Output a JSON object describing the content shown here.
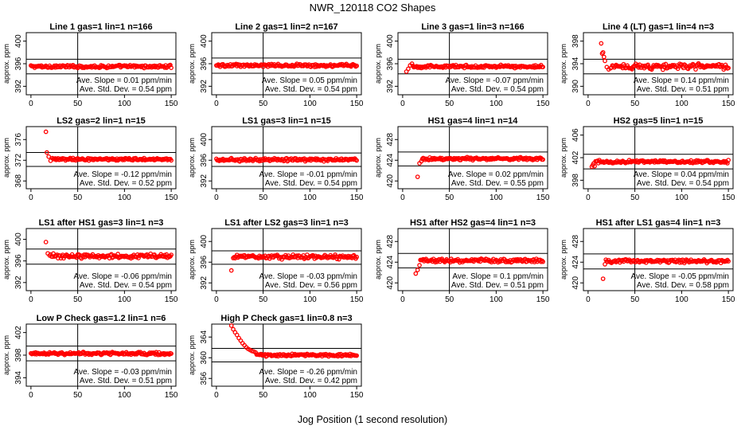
{
  "figure": {
    "title": "NWR_120118  CO2 Shapes",
    "xlabel": "Jog Position (1 second resolution)",
    "ylabel": "approx. ppm",
    "xticks": [
      0,
      50,
      100,
      150
    ],
    "marker_color": "#ff0000"
  },
  "chart_data": [
    {
      "type": "scatter",
      "title": "Line 1 gas=1 lin=1 n=166",
      "yticks": [
        392,
        396,
        400
      ],
      "ylim": [
        390.5,
        401.5
      ],
      "xlim": [
        -5,
        155
      ],
      "hlines": [
        396.8,
        394.2
      ],
      "vline": 50,
      "mean": 395.5,
      "noise": 0.15,
      "slope_text": "Ave. Slope =  0.01  ppm/min",
      "std_text": "Ave. Std. Dev. =  0.54  ppm",
      "outliers": []
    },
    {
      "type": "scatter",
      "title": "Line 2 gas=1 lin=2 n=167",
      "yticks": [
        392,
        396,
        400
      ],
      "ylim": [
        390.5,
        401.5
      ],
      "xlim": [
        -5,
        155
      ],
      "hlines": [
        397.0,
        394.3
      ],
      "vline": 50,
      "mean": 395.7,
      "noise": 0.15,
      "slope_text": "Ave. Slope =  0.05  ppm/min",
      "std_text": "Ave. Std. Dev. =  0.54  ppm",
      "outliers": []
    },
    {
      "type": "scatter",
      "title": "Line 3 gas=1 lin=3 n=166",
      "yticks": [
        392,
        396,
        400
      ],
      "ylim": [
        390.5,
        401.5
      ],
      "xlim": [
        -5,
        155
      ],
      "hlines": [
        396.8,
        394.2
      ],
      "vline": 50,
      "mean": 395.5,
      "noise": 0.15,
      "slope_text": "Ave. Slope =  -0.07  ppm/min",
      "std_text": "Ave. Std. Dev. =  0.54  ppm",
      "outliers": [
        [
          4,
          394.6
        ],
        [
          6,
          395.1
        ],
        [
          8,
          395.7
        ],
        [
          10,
          396.0
        ]
      ]
    },
    {
      "type": "scatter",
      "title": "Line 4 (LT) gas=1 lin=4 n=3",
      "yticks": [
        390,
        394,
        398
      ],
      "ylim": [
        388.5,
        399.5
      ],
      "xlim": [
        -5,
        155
      ],
      "hlines": [
        394.8,
        392.2
      ],
      "vline": 50,
      "mean": 393.5,
      "noise": 0.3,
      "slope_text": "Ave. Slope =  0.14  ppm/min",
      "std_text": "Ave. Std. Dev. =  0.51  ppm",
      "outliers": [
        [
          14,
          397.6
        ],
        [
          15,
          395.8
        ],
        [
          16,
          396.0
        ],
        [
          17,
          395.2
        ],
        [
          18,
          394.5
        ],
        [
          20,
          393.4
        ],
        [
          22,
          393.0
        ],
        [
          24,
          393.2
        ]
      ]
    },
    {
      "type": "scatter",
      "title": "LS2 gas=2 lin=1 n=15",
      "yticks": [
        368,
        372,
        376
      ],
      "ylim": [
        366.5,
        378.5
      ],
      "xlim": [
        -5,
        155
      ],
      "hlines": [
        373.5,
        370.8
      ],
      "vline": 50,
      "mean": 372.2,
      "noise": 0.15,
      "slope_text": "Ave. Slope =  -0.12  ppm/min",
      "std_text": "Ave. Std. Dev. =  0.52  ppm",
      "outliers": [
        [
          16,
          377.5
        ],
        [
          17,
          373.5
        ],
        [
          19,
          372.7
        ],
        [
          21,
          371.9
        ],
        [
          23,
          372.4
        ]
      ]
    },
    {
      "type": "scatter",
      "title": "LS1 gas=3 lin=1 n=15",
      "yticks": [
        392,
        396,
        400
      ],
      "ylim": [
        390.5,
        402.5
      ],
      "xlim": [
        -5,
        155
      ],
      "hlines": [
        397.4,
        394.8
      ],
      "vline": 50,
      "mean": 396.1,
      "noise": 0.18,
      "slope_text": "Ave. Slope =  -0.01  ppm/min",
      "std_text": "Ave. Std. Dev. =  0.54  ppm",
      "outliers": []
    },
    {
      "type": "scatter",
      "title": "HS1 gas=4 lin=1 n=14",
      "yticks": [
        420,
        424,
        428
      ],
      "ylim": [
        418.5,
        430.5
      ],
      "xlim": [
        -5,
        155
      ],
      "hlines": [
        425.6,
        422.9
      ],
      "vline": 50,
      "mean": 424.3,
      "noise": 0.15,
      "slope_text": "Ave. Slope =  0.02  ppm/min",
      "std_text": "Ave. Std. Dev. =  0.55  ppm",
      "outliers": [
        [
          16,
          420.8
        ],
        [
          18,
          423.4
        ],
        [
          20,
          423.8
        ]
      ]
    },
    {
      "type": "scatter",
      "title": "HS2 gas=5 lin=1 n=15",
      "yticks": [
        398,
        402,
        406
      ],
      "ylim": [
        396.5,
        407.5
      ],
      "xlim": [
        -5,
        155
      ],
      "hlines": [
        402.6,
        400.0
      ],
      "vline": 50,
      "mean": 401.3,
      "noise": 0.15,
      "slope_text": "Ave. Slope =  0.04  ppm/min",
      "std_text": "Ave. Std. Dev. =  0.54  ppm",
      "outliers": [
        [
          4,
          400.4
        ],
        [
          5,
          400.7
        ],
        [
          6,
          401.0
        ],
        [
          7,
          400.5
        ]
      ]
    },
    {
      "type": "scatter",
      "title": "LS1 after HS1 gas=3 lin=1 n=3",
      "yticks": [
        392,
        396,
        400
      ],
      "ylim": [
        390.5,
        402.0
      ],
      "xlim": [
        -5,
        155
      ],
      "hlines": [
        398.2,
        395.4
      ],
      "vline": 50,
      "mean": 396.9,
      "noise": 0.25,
      "slope_text": "Ave. Slope =  -0.06  ppm/min",
      "std_text": "Ave. Std. Dev. =  0.54  ppm",
      "outliers": [
        [
          16,
          399.5
        ],
        [
          18,
          397.4
        ],
        [
          20,
          397.0
        ]
      ]
    },
    {
      "type": "scatter",
      "title": "LS1 after LS2 gas=3 lin=1 n=3",
      "yticks": [
        392,
        396,
        400
      ],
      "ylim": [
        390.5,
        402.5
      ],
      "xlim": [
        -5,
        155
      ],
      "hlines": [
        398.2,
        395.6
      ],
      "vline": 50,
      "mean": 397.0,
      "noise": 0.25,
      "slope_text": "Ave. Slope =  -0.03  ppm/min",
      "std_text": "Ave. Std. Dev. =  0.56  ppm",
      "outliers": [
        [
          16,
          394.4
        ],
        [
          18,
          396.8
        ]
      ]
    },
    {
      "type": "scatter",
      "title": "HS1 after HS2 gas=4 lin=1 n=3",
      "yticks": [
        420,
        424,
        428
      ],
      "ylim": [
        418.5,
        430.5
      ],
      "xlim": [
        -5,
        155
      ],
      "hlines": [
        425.7,
        422.9
      ],
      "vline": 50,
      "mean": 424.3,
      "noise": 0.2,
      "slope_text": "Ave. Slope =  0.1  ppm/min",
      "std_text": "Ave. Std. Dev. =  0.51  ppm",
      "outliers": [
        [
          14,
          421.8
        ],
        [
          16,
          422.5
        ],
        [
          18,
          423.4
        ]
      ]
    },
    {
      "type": "scatter",
      "title": "HS1 after LS1 gas=4 lin=1 n=3",
      "yticks": [
        420,
        424,
        428
      ],
      "ylim": [
        418.5,
        430.5
      ],
      "xlim": [
        -5,
        155
      ],
      "hlines": [
        425.6,
        422.7
      ],
      "vline": 50,
      "mean": 424.2,
      "noise": 0.2,
      "slope_text": "Ave. Slope =  -0.05  ppm/min",
      "std_text": "Ave. Std. Dev. =  0.58  ppm",
      "outliers": [
        [
          16,
          420.8
        ],
        [
          18,
          423.6
        ]
      ]
    },
    {
      "type": "scatter",
      "title": "Low P Check gas=1.2 lin=1 n=6",
      "yticks": [
        394,
        398,
        402
      ],
      "ylim": [
        392.5,
        403.5
      ],
      "xlim": [
        -5,
        155
      ],
      "hlines": [
        399.6,
        397.0
      ],
      "vline": 50,
      "mean": 398.3,
      "noise": 0.15,
      "slope_text": "Ave. Slope =  -0.03  ppm/min",
      "std_text": "Ave. Std. Dev. =  0.51  ppm",
      "outliers": []
    },
    {
      "type": "scatter",
      "title": "High P Check gas=1 lin=0.8 n=3",
      "yticks": [
        356,
        360,
        364
      ],
      "ylim": [
        354.5,
        366.5
      ],
      "xlim": [
        -5,
        155
      ],
      "hlines": [
        361.8,
        359.2
      ],
      "vline": 50,
      "mean": 360.5,
      "noise": 0.15,
      "slope_text": "Ave. Slope =  -0.26  ppm/min",
      "std_text": "Ave. Std. Dev. =  0.42  ppm",
      "outliers": [
        [
          16,
          366.2
        ],
        [
          18,
          365.5
        ],
        [
          20,
          364.9
        ],
        [
          22,
          364.4
        ],
        [
          24,
          363.8
        ],
        [
          26,
          363.3
        ],
        [
          28,
          362.8
        ],
        [
          30,
          362.4
        ],
        [
          32,
          362.0
        ],
        [
          34,
          361.7
        ],
        [
          36,
          361.5
        ],
        [
          38,
          361.3
        ],
        [
          40,
          361.2
        ],
        [
          42,
          361.0
        ]
      ]
    }
  ]
}
